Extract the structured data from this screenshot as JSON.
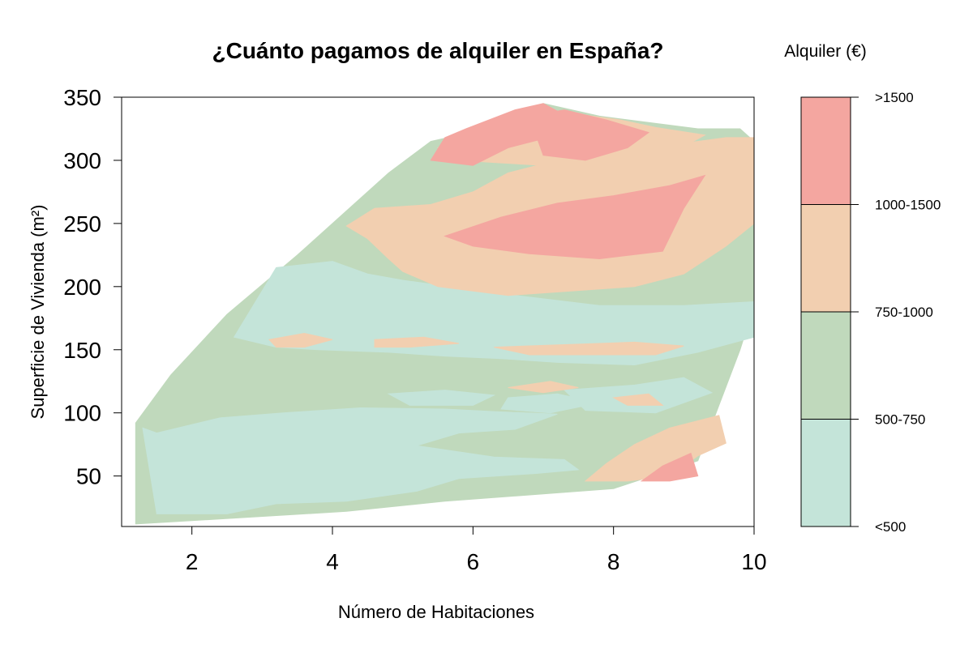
{
  "chart_data": {
    "type": "heatmap",
    "title": "¿Cuánto pagamos de alquiler en España?",
    "xlabel": "Número de Habitaciones",
    "ylabel": "Superficie de Vivienda (m²)",
    "xlim": [
      1,
      10
    ],
    "ylim": [
      10,
      350
    ],
    "x_ticks": [
      2,
      4,
      6,
      8,
      10
    ],
    "y_ticks": [
      50,
      100,
      150,
      200,
      250,
      300,
      350
    ],
    "grid": false,
    "legend": {
      "title": "Alquiler (€)",
      "placement": "right",
      "categories": [
        {
          "label": "<500",
          "color": "#c4e4d9"
        },
        {
          "label": "500-750",
          "color": "#c0d9bc"
        },
        {
          "label": "750-1000",
          "color": "#f2cfb0"
        },
        {
          "label": "1000-1500",
          "color": "#f2cfb0"
        },
        {
          "label": ">1500",
          "color": "#f4a6a0"
        }
      ],
      "boundaries": [
        "<500",
        "500-750",
        "750-1000",
        "1000-1500",
        ">1500"
      ]
    },
    "colors": {
      "lt500": "#c4e4d9",
      "500_750": "#c0d9bc",
      "750_1000": "#f2cfb0",
      "gt1500": "#f4a6a0"
    },
    "regions": [
      {
        "band": "500-750",
        "points": [
          [
            1.2,
            12
          ],
          [
            4.2,
            22
          ],
          [
            5.6,
            30
          ],
          [
            8.0,
            40
          ],
          [
            9.2,
            62
          ],
          [
            9.8,
            150
          ],
          [
            10,
            185
          ],
          [
            10,
            315
          ],
          [
            9.8,
            325
          ],
          [
            9.2,
            325
          ],
          [
            7.8,
            335
          ],
          [
            7.0,
            345
          ],
          [
            6.5,
            335
          ],
          [
            5.8,
            320
          ],
          [
            5.4,
            315
          ],
          [
            4.8,
            290
          ],
          [
            4.3,
            265
          ],
          [
            3.5,
            225
          ],
          [
            2.5,
            178
          ],
          [
            1.7,
            130
          ],
          [
            1.2,
            92
          ]
        ]
      },
      {
        "band": "<500",
        "points": [
          [
            1.3,
            88
          ],
          [
            1.5,
            84
          ],
          [
            2.4,
            96
          ],
          [
            3.3,
            100
          ],
          [
            4.4,
            104
          ],
          [
            5.6,
            103
          ],
          [
            6.3,
            101
          ],
          [
            7.2,
            99
          ],
          [
            6.6,
            87
          ],
          [
            5.8,
            84
          ],
          [
            5.2,
            74
          ],
          [
            6.3,
            65
          ],
          [
            7.3,
            63
          ],
          [
            7.5,
            55
          ],
          [
            6.9,
            52
          ],
          [
            5.8,
            48
          ],
          [
            5.2,
            38
          ],
          [
            4.2,
            30
          ],
          [
            3.2,
            28
          ],
          [
            2.5,
            20
          ],
          [
            1.5,
            20
          ]
        ]
      },
      {
        "band": "<500",
        "points": [
          [
            3.2,
            215
          ],
          [
            4.0,
            220
          ],
          [
            4.5,
            210
          ],
          [
            5.0,
            205
          ],
          [
            6.3,
            195
          ],
          [
            7.8,
            185
          ],
          [
            9.0,
            185
          ],
          [
            10,
            188
          ],
          [
            10,
            160
          ],
          [
            9.2,
            148
          ],
          [
            8.3,
            138
          ],
          [
            7.2,
            140
          ],
          [
            6.4,
            143
          ],
          [
            5.6,
            145
          ],
          [
            4.8,
            148
          ],
          [
            3.8,
            150
          ],
          [
            3.2,
            152
          ],
          [
            2.6,
            160
          ]
        ]
      },
      {
        "band": "<500",
        "points": [
          [
            7.3,
            118
          ],
          [
            8.3,
            122
          ],
          [
            9.0,
            128
          ],
          [
            9.4,
            116
          ],
          [
            8.6,
            100
          ],
          [
            7.6,
            102
          ]
        ]
      },
      {
        "band": "<500",
        "points": [
          [
            4.8,
            115
          ],
          [
            5.6,
            118
          ],
          [
            6.3,
            114
          ],
          [
            6.0,
            106
          ],
          [
            5.1,
            106
          ]
        ]
      },
      {
        "band": "<500",
        "points": [
          [
            6.5,
            112
          ],
          [
            7.2,
            115
          ],
          [
            7.8,
            108
          ],
          [
            7.1,
            100
          ],
          [
            6.4,
            103
          ]
        ]
      },
      {
        "band": "750-1000",
        "points": [
          [
            5.4,
            265
          ],
          [
            6.0,
            275
          ],
          [
            6.5,
            290
          ],
          [
            7.2,
            300
          ],
          [
            8.1,
            308
          ],
          [
            8.8,
            312
          ],
          [
            9.6,
            318
          ],
          [
            10,
            318
          ],
          [
            10,
            250
          ],
          [
            9.6,
            232
          ],
          [
            9.0,
            210
          ],
          [
            8.3,
            200
          ],
          [
            6.5,
            193
          ],
          [
            5.5,
            200
          ],
          [
            5.0,
            212
          ],
          [
            4.8,
            222
          ],
          [
            4.5,
            238
          ],
          [
            4.2,
            248
          ],
          [
            4.6,
            262
          ]
        ]
      },
      {
        "band": "750-1000",
        "points": [
          [
            5.5,
            310
          ],
          [
            6.0,
            323
          ],
          [
            6.7,
            335
          ],
          [
            7.3,
            338
          ],
          [
            8.1,
            332
          ],
          [
            8.6,
            326
          ],
          [
            9.3,
            320
          ],
          [
            8.7,
            302
          ],
          [
            7.7,
            302
          ],
          [
            7.0,
            296
          ],
          [
            6.4,
            298
          ],
          [
            5.8,
            300
          ]
        ]
      },
      {
        "band": "750-1000",
        "points": [
          [
            3.1,
            158
          ],
          [
            3.6,
            163
          ],
          [
            4.0,
            158
          ],
          [
            3.6,
            152
          ],
          [
            3.2,
            152
          ]
        ]
      },
      {
        "band": "750-1000",
        "points": [
          [
            4.6,
            158
          ],
          [
            5.3,
            160
          ],
          [
            5.8,
            155
          ],
          [
            5.1,
            152
          ],
          [
            4.6,
            152
          ]
        ]
      },
      {
        "band": "750-1000",
        "points": [
          [
            6.3,
            152
          ],
          [
            7.3,
            154
          ],
          [
            8.3,
            156
          ],
          [
            9.0,
            153
          ],
          [
            8.6,
            146
          ],
          [
            7.8,
            146
          ],
          [
            6.8,
            146
          ]
        ]
      },
      {
        "band": "750-1000",
        "points": [
          [
            8.8,
            88
          ],
          [
            9.5,
            98
          ],
          [
            9.6,
            76
          ],
          [
            9.2,
            66
          ],
          [
            8.8,
            50
          ],
          [
            8.2,
            46
          ],
          [
            7.6,
            46
          ],
          [
            7.9,
            60
          ],
          [
            8.3,
            75
          ]
        ]
      },
      {
        "band": "750-1000",
        "points": [
          [
            6.5,
            120
          ],
          [
            7.1,
            125
          ],
          [
            7.5,
            120
          ],
          [
            7.0,
            116
          ]
        ]
      },
      {
        "band": "750-1000",
        "points": [
          [
            8.0,
            112
          ],
          [
            8.5,
            115
          ],
          [
            8.7,
            106
          ],
          [
            8.2,
            106
          ]
        ]
      },
      {
        "band": ">1500",
        "points": [
          [
            6.0,
            296
          ],
          [
            6.5,
            310
          ],
          [
            7.2,
            320
          ],
          [
            7.5,
            330
          ],
          [
            7.0,
            345
          ],
          [
            6.6,
            340
          ],
          [
            5.9,
            325
          ],
          [
            5.6,
            318
          ],
          [
            5.4,
            300
          ]
        ]
      },
      {
        "band": ">1500",
        "points": [
          [
            6.8,
            335
          ],
          [
            7.3,
            340
          ],
          [
            7.9,
            332
          ],
          [
            8.5,
            322
          ],
          [
            8.2,
            310
          ],
          [
            7.6,
            300
          ],
          [
            7.0,
            304
          ]
        ]
      },
      {
        "band": ">1500",
        "points": [
          [
            5.6,
            240
          ],
          [
            6.4,
            255
          ],
          [
            7.2,
            266
          ],
          [
            8.0,
            272
          ],
          [
            8.8,
            280
          ],
          [
            9.3,
            288
          ],
          [
            9.0,
            262
          ],
          [
            8.7,
            228
          ],
          [
            7.8,
            222
          ],
          [
            6.8,
            226
          ],
          [
            6.0,
            232
          ]
        ]
      },
      {
        "band": ">1500",
        "points": [
          [
            8.4,
            46
          ],
          [
            8.7,
            58
          ],
          [
            9.1,
            68
          ],
          [
            9.2,
            50
          ],
          [
            8.8,
            46
          ]
        ]
      }
    ]
  }
}
